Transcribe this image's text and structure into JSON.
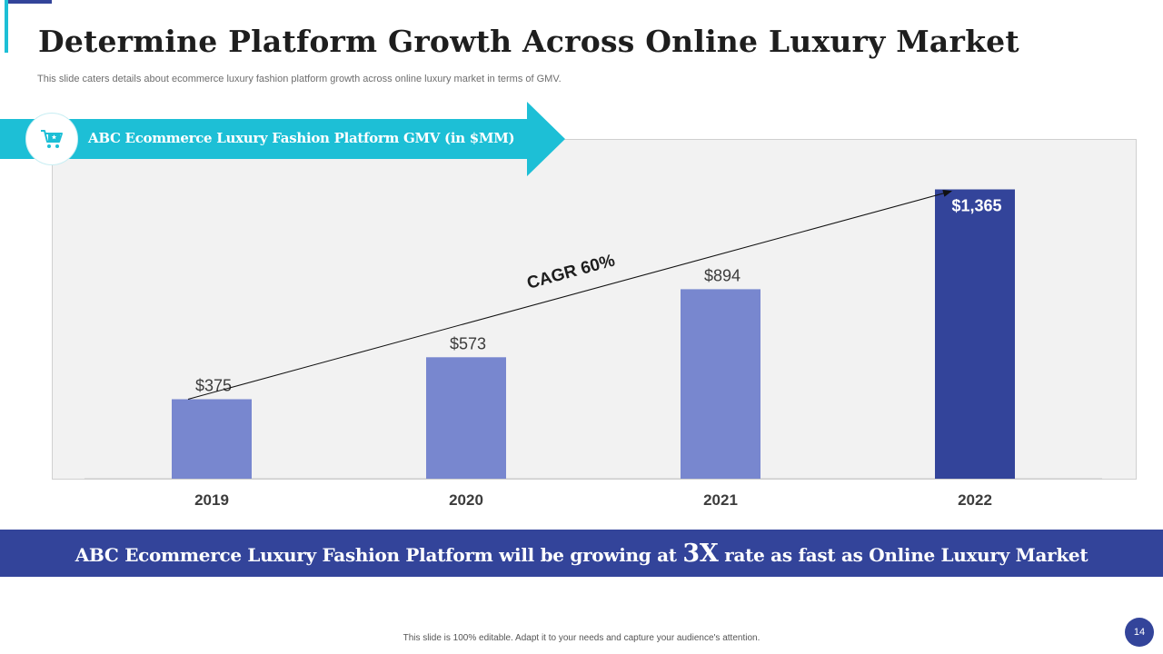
{
  "title": "Determine Platform Growth Across Online Luxury Market",
  "subtitle": "This slide caters details about ecommerce luxury fashion platform growth across online luxury market in terms of GMV.",
  "banner": {
    "label": "ABC Ecommerce Luxury Fashion Platform GMV (in $MM)",
    "icon": "shopping-cart-icon"
  },
  "chart_data": {
    "type": "bar",
    "title": "ABC Ecommerce Luxury Fashion Platform GMV (in $MM)",
    "categories": [
      "2019",
      "2020",
      "2021",
      "2022"
    ],
    "values": [
      375,
      573,
      894,
      1365
    ],
    "data_labels": [
      "$375",
      "$573",
      "$894",
      "$1,365"
    ],
    "ylim": [
      0,
      1380
    ],
    "xlabel": "",
    "ylabel": "",
    "grid": false,
    "annotation": "CAGR 60%",
    "highlight_index": 3
  },
  "footer": {
    "before": "ABC Ecommerce Luxury Fashion Platform will be growing at",
    "emphasis": "3X",
    "after": "rate as fast as Online Luxury Market"
  },
  "note": "This slide is 100% editable. Adapt it to your needs and capture your audience's attention.",
  "page_number": "14",
  "colors": {
    "bar": "#7887cf",
    "bar_highlight": "#33449a",
    "accent": "#1dbfd6",
    "navy": "#33449a"
  }
}
